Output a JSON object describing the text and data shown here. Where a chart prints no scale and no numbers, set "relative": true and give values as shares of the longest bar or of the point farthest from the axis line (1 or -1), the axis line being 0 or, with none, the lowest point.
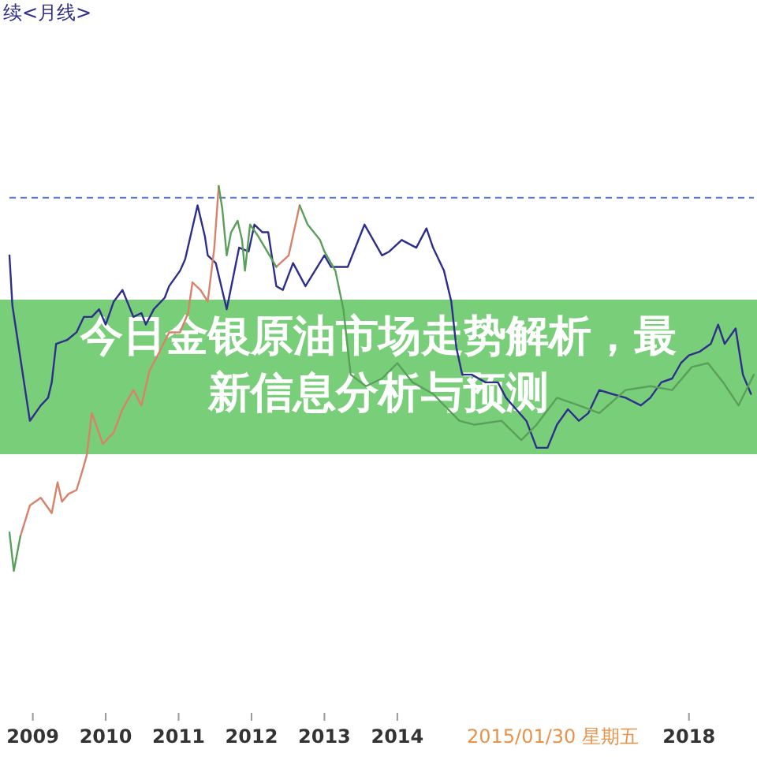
{
  "chart_data": {
    "type": "line",
    "relative": true,
    "title": "今日金银原油市场走势解析，最新信息分析与预测",
    "annotations": [
      "续<月线>",
      "2015/01/30 星期五"
    ],
    "xlim": [
      2008.68,
      2018.89
    ],
    "xticks": [
      {
        "value": 2009,
        "label": "2009"
      },
      {
        "value": 2010,
        "label": "2010"
      },
      {
        "value": 2011,
        "label": "2011"
      },
      {
        "value": 2012,
        "label": "2012"
      },
      {
        "value": 2013,
        "label": "2013"
      },
      {
        "value": 2014,
        "label": "2014"
      },
      {
        "value": 2018,
        "label": "2018"
      }
    ],
    "grid": false,
    "marker": "none",
    "line_style": "solid",
    "ref_lines": [
      {
        "axis": "y",
        "value": 0.97,
        "label": null,
        "color": "#5577cc",
        "line_style": "dashed"
      }
    ],
    "series": [
      {
        "color": "#2e2e8c",
        "x": [
          2008.68,
          2008.72,
          2008.96,
          2009.11,
          2009.21,
          2009.26,
          2009.32,
          2009.47,
          2009.6,
          2009.7,
          2009.81,
          2009.91,
          2010.0,
          2010.11,
          2010.23,
          2010.38,
          2010.49,
          2010.55,
          2010.66,
          2010.81,
          2010.87,
          2011.02,
          2011.09,
          2011.26,
          2011.36,
          2011.4,
          2011.51,
          2011.66,
          2011.83,
          2011.96,
          2012.04,
          2012.15,
          2012.23,
          2012.34,
          2012.43,
          2012.57,
          2012.74,
          2013.0,
          2013.09,
          2013.32,
          2013.55,
          2013.79,
          2013.89,
          2014.06,
          2014.26,
          2014.4,
          2014.49,
          2014.64,
          2014.74,
          2014.81,
          2014.89,
          2015.02,
          2015.21,
          2015.38,
          2015.49,
          2015.77,
          2015.91,
          2016.06,
          2016.19,
          2016.34,
          2016.49,
          2016.62,
          2016.77,
          2016.94,
          2017.13,
          2017.34,
          2017.47,
          2017.62,
          2017.77,
          2017.89,
          2018.0,
          2018.15,
          2018.3,
          2018.4,
          2018.49,
          2018.64,
          2018.74,
          2018.85
        ],
        "values": [
          0.82,
          0.69,
          0.39,
          0.43,
          0.45,
          0.49,
          0.59,
          0.6,
          0.62,
          0.66,
          0.66,
          0.68,
          0.64,
          0.7,
          0.73,
          0.66,
          0.67,
          0.64,
          0.68,
          0.71,
          0.74,
          0.78,
          0.81,
          0.95,
          0.87,
          0.82,
          0.8,
          0.68,
          0.84,
          0.83,
          0.9,
          0.88,
          0.88,
          0.74,
          0.73,
          0.8,
          0.74,
          0.82,
          0.79,
          0.79,
          0.9,
          0.82,
          0.83,
          0.86,
          0.84,
          0.89,
          0.84,
          0.78,
          0.7,
          0.58,
          0.51,
          0.51,
          0.49,
          0.49,
          0.45,
          0.39,
          0.32,
          0.32,
          0.38,
          0.42,
          0.39,
          0.41,
          0.47,
          0.46,
          0.45,
          0.43,
          0.45,
          0.49,
          0.5,
          0.54,
          0.56,
          0.57,
          0.59,
          0.64,
          0.59,
          0.63,
          0.51,
          0.46
        ]
      },
      {
        "color": "#d9826b",
        "x": [
          2008.83,
          2008.96,
          2009.11,
          2009.26,
          2009.34,
          2009.4,
          2009.49,
          2009.6,
          2009.68,
          2009.74,
          2009.81,
          2009.96,
          2010.11,
          2010.23,
          2010.38,
          2010.49,
          2010.6,
          2010.74,
          2010.87,
          2011.02,
          2011.13,
          2011.19,
          2011.3,
          2011.4,
          2011.49,
          2011.55
        ],
        "values": [
          0.09,
          0.17,
          0.19,
          0.15,
          0.23,
          0.18,
          0.2,
          0.21,
          0.26,
          0.3,
          0.41,
          0.33,
          0.36,
          0.42,
          0.47,
          0.43,
          0.52,
          0.57,
          0.62,
          0.62,
          0.67,
          0.75,
          0.73,
          0.7,
          0.84,
          1
        ]
      },
      {
        "color": "#d9826b",
        "x": [
          2012.34,
          2012.51,
          2012.66
        ],
        "values": [
          0.79,
          0.82,
          0.95
        ]
      },
      {
        "color": "#5aa05a",
        "x": [
          2008.68,
          2008.74,
          2008.83
        ],
        "values": [
          0.1,
          0,
          0.09
        ]
      },
      {
        "color": "#5aa05a",
        "x": [
          2011.55,
          2011.6,
          2011.66,
          2011.72,
          2011.81,
          2011.87,
          2011.91,
          2011.98,
          2012.09,
          2012.34
        ],
        "values": [
          1,
          0.94,
          0.82,
          0.88,
          0.91,
          0.86,
          0.78,
          0.9,
          0.87,
          0.79
        ]
      },
      {
        "color": "#5aa05a",
        "x": [
          2012.66,
          2012.77,
          2012.94,
          2013.0,
          2013.15,
          2013.26,
          2013.36,
          2013.57,
          2013.79,
          2014.0,
          2014.21,
          2014.49,
          2014.85,
          2015.06,
          2015.43,
          2015.7,
          2015.91,
          2016.19,
          2016.49,
          2016.77,
          2017.13,
          2017.47,
          2017.77,
          2018.04,
          2018.26,
          2018.47,
          2018.68,
          2018.89
        ],
        "values": [
          0.95,
          0.9,
          0.86,
          0.83,
          0.78,
          0.68,
          0.51,
          0.48,
          0.5,
          0.54,
          0.49,
          0.46,
          0.39,
          0.38,
          0.39,
          0.34,
          0.38,
          0.45,
          0.43,
          0.41,
          0.47,
          0.48,
          0.47,
          0.53,
          0.54,
          0.49,
          0.43,
          0.51
        ]
      }
    ]
  }
}
